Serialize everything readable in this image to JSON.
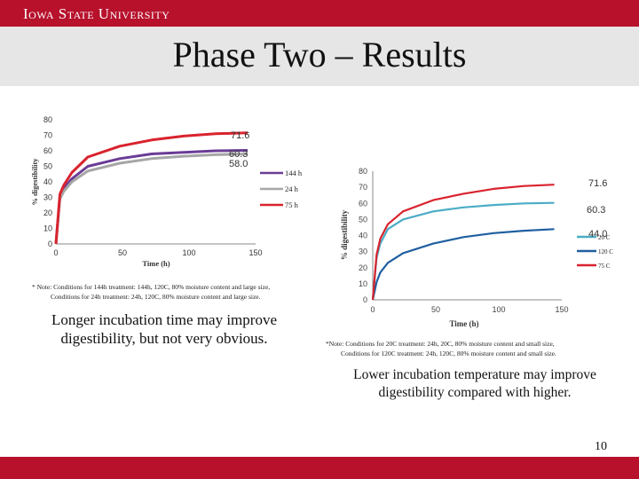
{
  "header": {
    "brand": "Iowa State University"
  },
  "slide": {
    "title": "Phase Two – Results",
    "page_number": "10"
  },
  "colors": {
    "brand_red": "#b7112c",
    "series_purple": "#6a3c96",
    "series_gray": "#a6a6a6",
    "series_red": "#d9232e",
    "series_teal": "#4bacc6",
    "series_navy": "#1f5fa0"
  },
  "chart_data": [
    {
      "type": "line",
      "title": "",
      "xlabel": "Time (h)",
      "ylabel": "% digestibility",
      "xlim": [
        0,
        150
      ],
      "ylim": [
        0,
        80
      ],
      "x_ticks": [
        "0",
        "50",
        "100",
        "150"
      ],
      "y_ticks": [
        "0",
        "10",
        "20",
        "30",
        "40",
        "50",
        "60",
        "70",
        "80"
      ],
      "legend_position": "right",
      "series": [
        {
          "name": "144 h",
          "color": "#6a3c96",
          "end_label": "",
          "x": [
            0,
            3,
            6,
            12,
            24,
            48,
            72,
            96,
            120,
            144
          ],
          "y": [
            0,
            30,
            36,
            42,
            50,
            55,
            58,
            59,
            60,
            60.3
          ]
        },
        {
          "name": "24 h",
          "color": "#a6a6a6",
          "end_label": "58.0",
          "x": [
            0,
            3,
            6,
            12,
            24,
            48,
            72,
            96,
            120,
            144
          ],
          "y": [
            0,
            29,
            34,
            40,
            47,
            52,
            55,
            56.5,
            57.5,
            58
          ]
        },
        {
          "name": "75 h",
          "color": "#d9232e",
          "end_label": "71.6",
          "x": [
            0,
            3,
            6,
            12,
            24,
            48,
            72,
            96,
            120,
            144
          ],
          "y": [
            0,
            32,
            38,
            46,
            56,
            63,
            67,
            69.5,
            71,
            71.6
          ]
        }
      ],
      "annotations": [
        "60.3"
      ]
    },
    {
      "type": "line",
      "title": "",
      "xlabel": "Time (h)",
      "ylabel": "% digestibility",
      "xlim": [
        0,
        150
      ],
      "ylim": [
        0,
        80
      ],
      "x_ticks": [
        "0",
        "50",
        "100",
        "150"
      ],
      "y_ticks": [
        "0",
        "10",
        "20",
        "30",
        "40",
        "50",
        "60",
        "70",
        "80"
      ],
      "legend_position": "right",
      "series": [
        {
          "name": "20 C",
          "color": "#4bacc6",
          "end_label": "60.3",
          "x": [
            0,
            3,
            6,
            12,
            24,
            48,
            72,
            96,
            120,
            144
          ],
          "y": [
            0,
            26,
            35,
            44,
            50,
            55,
            57.5,
            59,
            60,
            60.3
          ]
        },
        {
          "name": "120 C",
          "color": "#1f5fa0",
          "end_label": "44.0",
          "x": [
            0,
            3,
            6,
            12,
            24,
            48,
            72,
            96,
            120,
            144
          ],
          "y": [
            0,
            11,
            17,
            23,
            29,
            35,
            39,
            41.5,
            43,
            44
          ]
        },
        {
          "name": "75 C",
          "color": "#d9232e",
          "end_label": "71.6",
          "x": [
            0,
            3,
            6,
            12,
            24,
            48,
            72,
            96,
            120,
            144
          ],
          "y": [
            0,
            28,
            38,
            47,
            55,
            62,
            66,
            69,
            70.8,
            71.6
          ]
        }
      ]
    }
  ],
  "notes": {
    "left_line1": "* Note: Conditions for 144h treatment: 144h, 120C, 80% moisture content and large size,",
    "left_line2": "Conditions for 24h treatment: 24h, 120C, 80% moisture content and large size.",
    "right_line1": "*Note: Conditions for 20C treatment: 24h, 20C, 80% moisture content and small size,",
    "right_line2": "Conditions for 120C treatment: 24h, 120C, 80% moisture content and small size."
  },
  "captions": {
    "left": "Longer incubation time may improve digestibility, but not very obvious.",
    "right": "Lower incubation temperature may improve digestibility compared with higher."
  }
}
